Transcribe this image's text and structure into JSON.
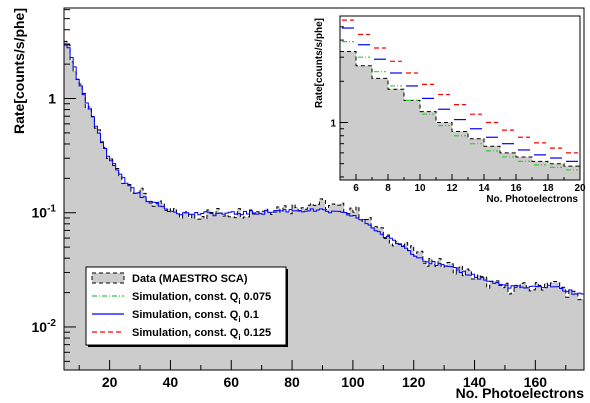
{
  "chart_data": [
    {
      "type": "step",
      "xlabel": "No. Photoelectrons",
      "ylabel": "Rate[counts/s/phe]",
      "yscale": "log",
      "xlim": [
        5,
        176
      ],
      "ylim": [
        0.0042,
        6.2
      ],
      "x_ticks": [
        20,
        40,
        60,
        80,
        100,
        120,
        140,
        160
      ],
      "x_tick_labels": [
        "20",
        "40",
        "60",
        "80",
        "100",
        "120",
        "140",
        "160"
      ],
      "y_ticks": [
        0.01,
        0.1,
        1
      ],
      "y_tick_labels": [
        {
          "base": "10",
          "exp": "-2"
        },
        {
          "base": "10",
          "exp": "-1"
        },
        {
          "base": "1",
          "exp": ""
        }
      ],
      "legend": {
        "placement": "bottom-left",
        "entries": [
          {
            "text": "Data (MAESTRO SCA)",
            "series": "data"
          },
          {
            "text": "Simulation, const. Q",
            "sub": "i",
            "value": " 0.075",
            "series": "sim075"
          },
          {
            "text": "Simulation, const. Q",
            "sub": "i",
            "value": " 0.1",
            "series": "sim01"
          },
          {
            "text": "Simulation, const. Q",
            "sub": "i",
            "value": " 0.125",
            "series": "sim0125"
          }
        ]
      },
      "series_styles": {
        "data": {
          "color": "#000000",
          "fill": "#cccccc",
          "dash": "4,3"
        },
        "sim075": {
          "color": "#33cc33",
          "dash": "5,2,1,2"
        },
        "sim01": {
          "color": "#0000ff",
          "dash": ""
        },
        "sim0125": {
          "color": "#ff0000",
          "dash": "5,3"
        }
      },
      "series": [
        {
          "id": "data",
          "x": [
            6,
            10,
            15,
            20,
            25,
            30,
            35,
            40,
            45,
            50,
            55,
            60,
            65,
            70,
            75,
            80,
            85,
            90,
            95,
            100,
            105,
            110,
            115,
            120,
            125,
            130,
            135,
            140,
            145,
            150,
            155,
            160,
            165,
            170,
            175
          ],
          "values": [
            3.2,
            1.3,
            0.6,
            0.29,
            0.19,
            0.15,
            0.12,
            0.1,
            0.095,
            0.097,
            0.1,
            0.1,
            0.102,
            0.106,
            0.11,
            0.11,
            0.12,
            0.12,
            0.11,
            0.11,
            0.085,
            0.065,
            0.055,
            0.045,
            0.038,
            0.035,
            0.032,
            0.028,
            0.024,
            0.022,
            0.022,
            0.022,
            0.025,
            0.021,
            0.017
          ]
        },
        {
          "id": "sim01",
          "x": [
            6,
            10,
            15,
            20,
            25,
            30,
            35,
            40,
            45,
            50,
            55,
            60,
            65,
            70,
            75,
            80,
            85,
            90,
            95,
            100,
            105,
            110,
            115,
            120,
            125,
            130,
            135,
            140,
            145,
            150,
            155,
            160,
            165,
            170,
            175
          ],
          "values": [
            3.0,
            1.35,
            0.62,
            0.3,
            0.19,
            0.14,
            0.12,
            0.105,
            0.098,
            0.098,
            0.098,
            0.098,
            0.1,
            0.1,
            0.104,
            0.105,
            0.105,
            0.104,
            0.1,
            0.095,
            0.08,
            0.063,
            0.054,
            0.044,
            0.037,
            0.034,
            0.031,
            0.028,
            0.025,
            0.023,
            0.022,
            0.022,
            0.023,
            0.021,
            0.019
          ]
        }
      ]
    },
    {
      "type": "step",
      "xlabel": "No. Photoelectrons",
      "ylabel": "Rate[counts/s/phe]",
      "yscale": "log",
      "xlim": [
        5,
        20
      ],
      "ylim": [
        0.38,
        6.0
      ],
      "x_ticks": [
        6,
        8,
        10,
        12,
        14,
        16,
        18,
        20
      ],
      "x_tick_labels": [
        "6",
        "8",
        "10",
        "12",
        "14",
        "16",
        "18",
        "20"
      ],
      "y_ticks": [
        1
      ],
      "y_tick_labels": [
        "1"
      ],
      "x": [
        5,
        6,
        7,
        8,
        9,
        10,
        11,
        12,
        13,
        14,
        15,
        16,
        17,
        18,
        19
      ],
      "series": [
        {
          "id": "data",
          "values": [
            3.3,
            2.6,
            2.1,
            1.75,
            1.45,
            1.2,
            1.0,
            0.86,
            0.76,
            0.67,
            0.6,
            0.56,
            0.52,
            0.5,
            0.48
          ]
        },
        {
          "id": "sim075",
          "values": [
            3.9,
            3.0,
            2.35,
            1.85,
            1.45,
            1.15,
            0.95,
            0.8,
            0.7,
            0.62,
            0.56,
            0.52,
            0.49,
            0.47,
            0.45
          ]
        },
        {
          "id": "sim01",
          "values": [
            4.9,
            3.7,
            2.9,
            2.3,
            1.85,
            1.5,
            1.25,
            1.05,
            0.9,
            0.78,
            0.7,
            0.63,
            0.58,
            0.55,
            0.52
          ]
        },
        {
          "id": "sim0125",
          "values": [
            5.6,
            4.4,
            3.5,
            2.8,
            2.3,
            1.9,
            1.6,
            1.35,
            1.15,
            1.0,
            0.88,
            0.78,
            0.71,
            0.65,
            0.6
          ]
        }
      ]
    }
  ]
}
